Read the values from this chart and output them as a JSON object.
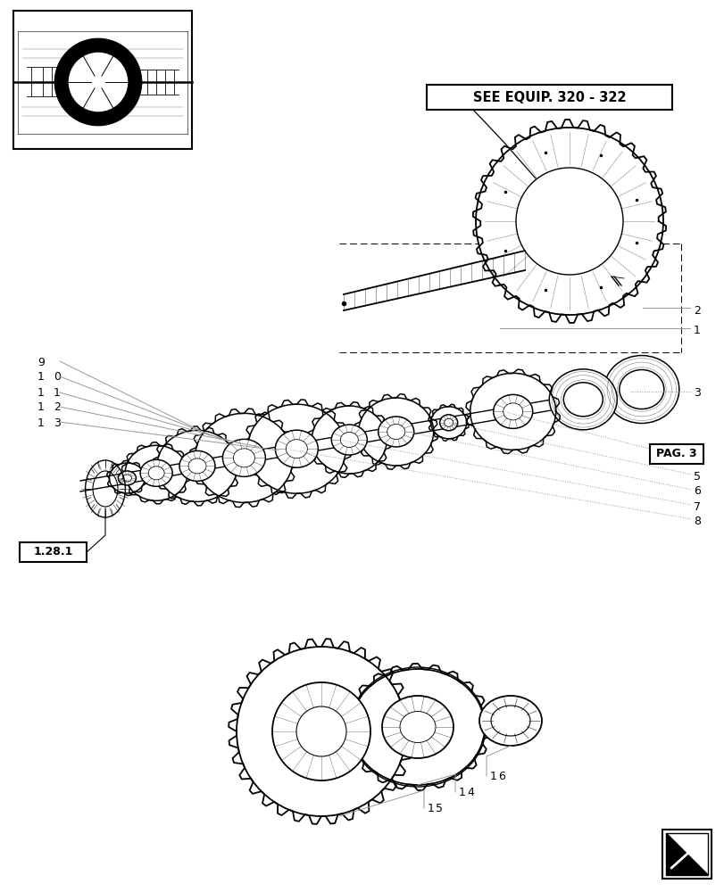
{
  "bg_color": "#ffffff",
  "line_color": "#000000",
  "light_gray": "#999999",
  "title_box_text": "SEE EQUIP. 320 - 322",
  "pag3_text": "PAG. 3",
  "ref_label": "1.28.1"
}
